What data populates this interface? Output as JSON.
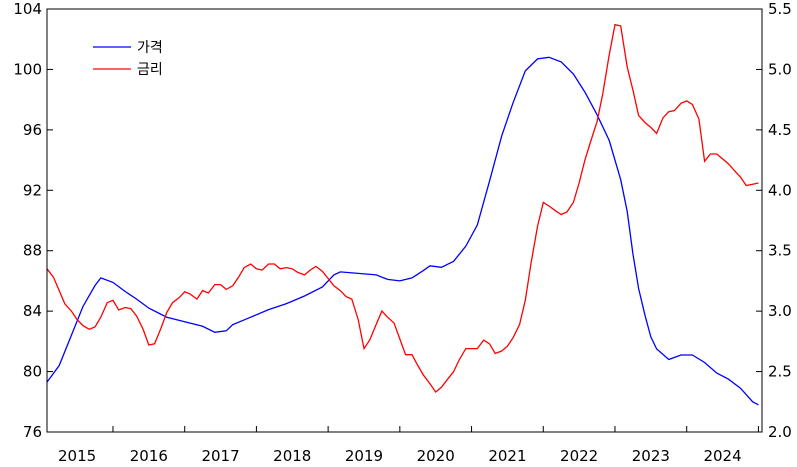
{
  "chart_data": {
    "type": "line",
    "title": "",
    "grid": false,
    "legend_position": "top-left",
    "x_tick_labels": [
      "2015",
      "2016",
      "2017",
      "2018",
      "2019",
      "2020",
      "2021",
      "2022",
      "2023",
      "2024"
    ],
    "xlim": [
      2014.58,
      2024.55
    ],
    "y_left": {
      "ylim": [
        76,
        104
      ],
      "ticks": [
        "76",
        "80",
        "84",
        "88",
        "92",
        "96",
        "100",
        "104"
      ]
    },
    "y_right": {
      "ylim": [
        2.0,
        5.5
      ],
      "ticks": [
        "2.0",
        "2.5",
        "3.0",
        "3.5",
        "4.0",
        "4.5",
        "5.0",
        "5.5"
      ]
    },
    "series": [
      {
        "name": "가격",
        "color": "#0000ff",
        "axis": "left",
        "points": [
          [
            2014.58,
            79.3
          ],
          [
            2014.75,
            80.4
          ],
          [
            2014.92,
            82.4
          ],
          [
            2015.08,
            84.3
          ],
          [
            2015.25,
            85.7
          ],
          [
            2015.33,
            86.2
          ],
          [
            2015.5,
            85.9
          ],
          [
            2015.67,
            85.3
          ],
          [
            2015.83,
            84.8
          ],
          [
            2016.0,
            84.2
          ],
          [
            2016.25,
            83.6
          ],
          [
            2016.5,
            83.3
          ],
          [
            2016.75,
            83.0
          ],
          [
            2016.92,
            82.6
          ],
          [
            2017.08,
            82.7
          ],
          [
            2017.17,
            83.1
          ],
          [
            2017.42,
            83.6
          ],
          [
            2017.67,
            84.1
          ],
          [
            2017.92,
            84.5
          ],
          [
            2018.17,
            85.0
          ],
          [
            2018.42,
            85.6
          ],
          [
            2018.58,
            86.4
          ],
          [
            2018.67,
            86.6
          ],
          [
            2018.92,
            86.5
          ],
          [
            2019.17,
            86.4
          ],
          [
            2019.33,
            86.1
          ],
          [
            2019.5,
            86.0
          ],
          [
            2019.67,
            86.2
          ],
          [
            2019.83,
            86.7
          ],
          [
            2019.92,
            87.0
          ],
          [
            2020.08,
            86.9
          ],
          [
            2020.25,
            87.3
          ],
          [
            2020.42,
            88.3
          ],
          [
            2020.58,
            89.7
          ],
          [
            2020.75,
            92.6
          ],
          [
            2020.92,
            95.6
          ],
          [
            2021.08,
            97.8
          ],
          [
            2021.25,
            99.9
          ],
          [
            2021.42,
            100.7
          ],
          [
            2021.58,
            100.8
          ],
          [
            2021.75,
            100.5
          ],
          [
            2021.92,
            99.7
          ],
          [
            2022.08,
            98.5
          ],
          [
            2022.25,
            97.0
          ],
          [
            2022.42,
            95.3
          ],
          [
            2022.58,
            92.7
          ],
          [
            2022.67,
            90.6
          ],
          [
            2022.75,
            87.8
          ],
          [
            2022.83,
            85.5
          ],
          [
            2022.92,
            83.7
          ],
          [
            2023.0,
            82.3
          ],
          [
            2023.08,
            81.5
          ],
          [
            2023.25,
            80.8
          ],
          [
            2023.42,
            81.1
          ],
          [
            2023.58,
            81.1
          ],
          [
            2023.75,
            80.6
          ],
          [
            2023.92,
            79.9
          ],
          [
            2024.08,
            79.5
          ],
          [
            2024.25,
            78.9
          ],
          [
            2024.42,
            78.0
          ],
          [
            2024.5,
            77.8
          ]
        ]
      },
      {
        "name": "금리",
        "color": "#ff0000",
        "axis": "right",
        "points": [
          [
            2014.58,
            3.35
          ],
          [
            2014.67,
            3.28
          ],
          [
            2014.75,
            3.17
          ],
          [
            2014.83,
            3.06
          ],
          [
            2014.92,
            3.0
          ],
          [
            2015.0,
            2.93
          ],
          [
            2015.08,
            2.88
          ],
          [
            2015.17,
            2.85
          ],
          [
            2015.25,
            2.87
          ],
          [
            2015.33,
            2.95
          ],
          [
            2015.42,
            3.07
          ],
          [
            2015.5,
            3.09
          ],
          [
            2015.58,
            3.01
          ],
          [
            2015.67,
            3.03
          ],
          [
            2015.75,
            3.02
          ],
          [
            2015.83,
            2.96
          ],
          [
            2015.92,
            2.85
          ],
          [
            2016.0,
            2.72
          ],
          [
            2016.08,
            2.73
          ],
          [
            2016.17,
            2.86
          ],
          [
            2016.25,
            2.99
          ],
          [
            2016.33,
            3.07
          ],
          [
            2016.42,
            3.11
          ],
          [
            2016.5,
            3.16
          ],
          [
            2016.58,
            3.14
          ],
          [
            2016.67,
            3.1
          ],
          [
            2016.75,
            3.17
          ],
          [
            2016.83,
            3.15
          ],
          [
            2016.92,
            3.22
          ],
          [
            2017.0,
            3.22
          ],
          [
            2017.08,
            3.18
          ],
          [
            2017.17,
            3.21
          ],
          [
            2017.25,
            3.28
          ],
          [
            2017.33,
            3.36
          ],
          [
            2017.42,
            3.39
          ],
          [
            2017.5,
            3.35
          ],
          [
            2017.58,
            3.34
          ],
          [
            2017.67,
            3.39
          ],
          [
            2017.75,
            3.39
          ],
          [
            2017.83,
            3.35
          ],
          [
            2017.92,
            3.36
          ],
          [
            2018.0,
            3.35
          ],
          [
            2018.08,
            3.32
          ],
          [
            2018.17,
            3.3
          ],
          [
            2018.25,
            3.34
          ],
          [
            2018.33,
            3.37
          ],
          [
            2018.42,
            3.33
          ],
          [
            2018.5,
            3.27
          ],
          [
            2018.58,
            3.21
          ],
          [
            2018.67,
            3.17
          ],
          [
            2018.75,
            3.12
          ],
          [
            2018.83,
            3.1
          ],
          [
            2018.92,
            2.93
          ],
          [
            2019.0,
            2.69
          ],
          [
            2019.08,
            2.76
          ],
          [
            2019.17,
            2.89
          ],
          [
            2019.25,
            3.0
          ],
          [
            2019.33,
            2.95
          ],
          [
            2019.42,
            2.9
          ],
          [
            2019.5,
            2.77
          ],
          [
            2019.58,
            2.64
          ],
          [
            2019.67,
            2.64
          ],
          [
            2019.75,
            2.55
          ],
          [
            2019.83,
            2.47
          ],
          [
            2019.92,
            2.4
          ],
          [
            2020.0,
            2.33
          ],
          [
            2020.08,
            2.37
          ],
          [
            2020.17,
            2.44
          ],
          [
            2020.25,
            2.5
          ],
          [
            2020.33,
            2.6
          ],
          [
            2020.42,
            2.69
          ],
          [
            2020.5,
            2.69
          ],
          [
            2020.58,
            2.69
          ],
          [
            2020.67,
            2.76
          ],
          [
            2020.75,
            2.73
          ],
          [
            2020.83,
            2.65
          ],
          [
            2020.92,
            2.67
          ],
          [
            2021.0,
            2.71
          ],
          [
            2021.08,
            2.78
          ],
          [
            2021.17,
            2.89
          ],
          [
            2021.25,
            3.09
          ],
          [
            2021.33,
            3.4
          ],
          [
            2021.42,
            3.7
          ],
          [
            2021.5,
            3.9
          ],
          [
            2021.58,
            3.87
          ],
          [
            2021.67,
            3.83
          ],
          [
            2021.75,
            3.8
          ],
          [
            2021.83,
            3.82
          ],
          [
            2021.92,
            3.9
          ],
          [
            2022.0,
            4.06
          ],
          [
            2022.08,
            4.25
          ],
          [
            2022.17,
            4.42
          ],
          [
            2022.25,
            4.57
          ],
          [
            2022.33,
            4.8
          ],
          [
            2022.42,
            5.12
          ],
          [
            2022.5,
            5.37
          ],
          [
            2022.58,
            5.36
          ],
          [
            2022.67,
            5.02
          ],
          [
            2022.75,
            4.83
          ],
          [
            2022.83,
            4.62
          ],
          [
            2022.92,
            4.56
          ],
          [
            2023.0,
            4.52
          ],
          [
            2023.08,
            4.47
          ],
          [
            2023.17,
            4.6
          ],
          [
            2023.25,
            4.65
          ],
          [
            2023.33,
            4.66
          ],
          [
            2023.42,
            4.72
          ],
          [
            2023.5,
            4.74
          ],
          [
            2023.58,
            4.71
          ],
          [
            2023.67,
            4.59
          ],
          [
            2023.75,
            4.24
          ],
          [
            2023.83,
            4.3
          ],
          [
            2023.92,
            4.3
          ],
          [
            2024.0,
            4.26
          ],
          [
            2024.08,
            4.22
          ],
          [
            2024.17,
            4.16
          ],
          [
            2024.25,
            4.11
          ],
          [
            2024.33,
            4.04
          ],
          [
            2024.42,
            4.05
          ],
          [
            2024.5,
            4.06
          ]
        ]
      }
    ]
  }
}
